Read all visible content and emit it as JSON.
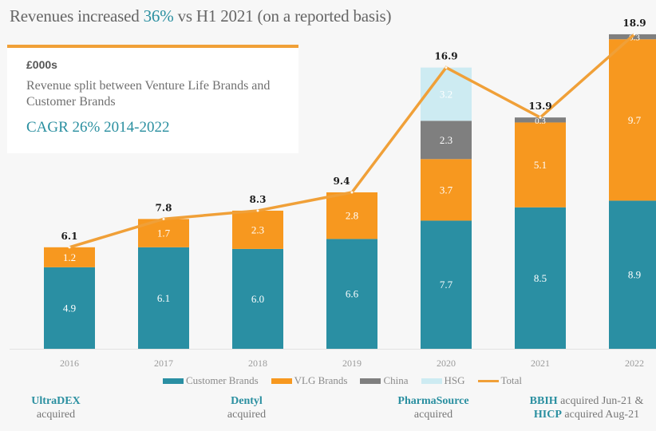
{
  "headline": {
    "prefix": "Revenues increased ",
    "highlight": "36%",
    "suffix": " vs H1 2021 (on a reported basis)"
  },
  "info_box": {
    "unit": "£000s",
    "subtitle": "Revenue split between Venture Life Brands and Customer Brands",
    "cagr": "CAGR 26% 2014-2022"
  },
  "colors": {
    "customer_brands": "#2a8fa3",
    "vlg_brands": "#f7981f",
    "china": "#7f7f7f",
    "hsg": "#cdebf2",
    "total": "#f0a038",
    "accent": "#2a8fa0"
  },
  "chart_data": {
    "type": "bar",
    "stacked": true,
    "title": "Revenues increased 36% vs H1 2021 (on a reported basis)",
    "xlabel": "",
    "ylabel": "£000s",
    "ylim": [
      0,
      19
    ],
    "grid": false,
    "legend_position": "bottom",
    "categories": [
      "2016",
      "2017",
      "2018",
      "2019",
      "2020",
      "2021",
      "2022"
    ],
    "series": [
      {
        "name": "Customer Brands",
        "key": "customer_brands",
        "values": [
          4.9,
          6.1,
          6.0,
          6.6,
          7.7,
          8.5,
          8.9
        ]
      },
      {
        "name": "VLG Brands",
        "key": "vlg_brands",
        "values": [
          1.2,
          1.7,
          2.3,
          2.8,
          3.7,
          5.1,
          9.7
        ]
      },
      {
        "name": "China",
        "key": "china",
        "values": [
          null,
          null,
          null,
          null,
          2.3,
          0.3,
          0.3
        ]
      },
      {
        "name": "HSG",
        "key": "hsg",
        "values": [
          null,
          null,
          null,
          null,
          3.2,
          null,
          null
        ]
      }
    ],
    "line_series": {
      "name": "Total",
      "key": "total",
      "values": [
        6.1,
        7.8,
        8.3,
        9.4,
        16.9,
        13.9,
        18.9
      ]
    },
    "legend": [
      "Customer Brands",
      "VLG Brands",
      "China",
      "HSG",
      "Total"
    ]
  },
  "acquisitions": [
    {
      "bold": "UltraDEX",
      "text": "acquired"
    },
    {
      "bold": "Dentyl",
      "text": "acquired"
    },
    {
      "bold": "PharmaSource",
      "text": "acquired"
    },
    {
      "bold1": "BBIH",
      "text1": " acquired Jun-21 &",
      "bold2": "HICP",
      "text2": " acquired Aug-21"
    }
  ]
}
